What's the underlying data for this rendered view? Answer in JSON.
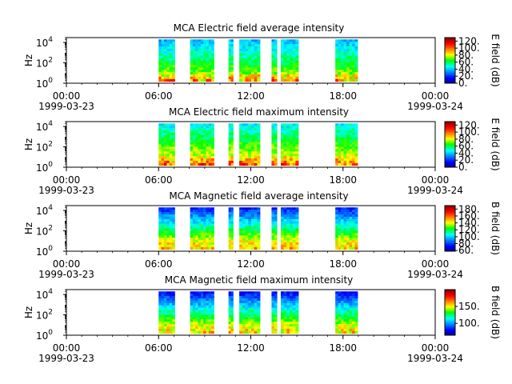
{
  "chart_data": [
    {
      "type": "heatmap",
      "title": "MCA  Electric field average intensity",
      "ylabel": "Hz",
      "yscale": "log",
      "ylim": [
        1,
        30000
      ],
      "yticks": [
        {
          "value": 1,
          "base": "10",
          "exp": "0"
        },
        {
          "value": 100,
          "base": "10",
          "exp": "2"
        },
        {
          "value": 10000,
          "base": "10",
          "exp": "4"
        }
      ],
      "xlim_hours": [
        0,
        24
      ],
      "xticks": [
        {
          "hour": 0,
          "time": "00:00",
          "date": "1999-03-23"
        },
        {
          "hour": 6,
          "time": "06:00",
          "date": ""
        },
        {
          "hour": 12,
          "time": "12:00",
          "date": ""
        },
        {
          "hour": 18,
          "time": "18:00",
          "date": ""
        },
        {
          "hour": 24,
          "time": "00:00",
          "date": "1999-03-24"
        }
      ],
      "colorbar": {
        "label": "E field (dB)",
        "range": [
          0,
          130
        ],
        "ticks": [
          "0.",
          "20.",
          "40.",
          "60.",
          "80.",
          "100.",
          "120."
        ],
        "tick_values": [
          0,
          20,
          40,
          60,
          80,
          100,
          120
        ]
      },
      "data_intervals_hours": [
        [
          6.0,
          7.05
        ],
        [
          8.05,
          9.6
        ],
        [
          10.55,
          10.85
        ],
        [
          11.25,
          12.6
        ],
        [
          13.35,
          13.7
        ],
        [
          13.95,
          15.1
        ],
        [
          17.5,
          18.95
        ]
      ],
      "intensity_profile": "high (80-100 dB) at 1-30 Hz, decreasing to 30-50 dB above 1 kHz"
    },
    {
      "type": "heatmap",
      "title": "MCA  Electric field maximum intensity",
      "ylabel": "Hz",
      "yscale": "log",
      "ylim": [
        1,
        30000
      ],
      "yticks": [
        {
          "value": 1,
          "base": "10",
          "exp": "0"
        },
        {
          "value": 100,
          "base": "10",
          "exp": "2"
        },
        {
          "value": 10000,
          "base": "10",
          "exp": "4"
        }
      ],
      "xlim_hours": [
        0,
        24
      ],
      "xticks": [
        {
          "hour": 0,
          "time": "00:00",
          "date": "1999-03-23"
        },
        {
          "hour": 6,
          "time": "06:00",
          "date": ""
        },
        {
          "hour": 12,
          "time": "12:00",
          "date": ""
        },
        {
          "hour": 18,
          "time": "18:00",
          "date": ""
        },
        {
          "hour": 24,
          "time": "00:00",
          "date": "1999-03-24"
        }
      ],
      "colorbar": {
        "label": "E field (dB)",
        "range": [
          0,
          130
        ],
        "ticks": [
          "0.",
          "20.",
          "40.",
          "60.",
          "80.",
          "100.",
          "120."
        ],
        "tick_values": [
          0,
          20,
          40,
          60,
          80,
          100,
          120
        ]
      },
      "data_intervals_hours": [
        [
          6.0,
          7.05
        ],
        [
          8.05,
          9.6
        ],
        [
          10.55,
          10.85
        ],
        [
          11.25,
          12.6
        ],
        [
          13.35,
          13.7
        ],
        [
          13.95,
          15.1
        ],
        [
          17.5,
          18.95
        ]
      ],
      "intensity_profile": "high (85-110 dB) at 1-30 Hz, decreasing to 35-55 dB above 1 kHz"
    },
    {
      "type": "heatmap",
      "title": "MCA  Magnetic field average intensity",
      "ylabel": "Hz",
      "yscale": "log",
      "ylim": [
        1,
        30000
      ],
      "yticks": [
        {
          "value": 1,
          "base": "10",
          "exp": "0"
        },
        {
          "value": 100,
          "base": "10",
          "exp": "2"
        },
        {
          "value": 10000,
          "base": "10",
          "exp": "4"
        }
      ],
      "xlim_hours": [
        0,
        24
      ],
      "xticks": [
        {
          "hour": 0,
          "time": "00:00",
          "date": "1999-03-23"
        },
        {
          "hour": 6,
          "time": "06:00",
          "date": ""
        },
        {
          "hour": 12,
          "time": "12:00",
          "date": ""
        },
        {
          "hour": 18,
          "time": "18:00",
          "date": ""
        },
        {
          "hour": 24,
          "time": "00:00",
          "date": "1999-03-24"
        }
      ],
      "colorbar": {
        "label": "B field (dB)",
        "range": [
          58,
          190
        ],
        "ticks": [
          "60.",
          "80.",
          "100.",
          "120.",
          "140.",
          "160.",
          "180."
        ],
        "tick_values": [
          60,
          80,
          100,
          120,
          140,
          160,
          180
        ]
      },
      "data_intervals_hours": [
        [
          6.0,
          7.05
        ],
        [
          8.05,
          9.6
        ],
        [
          10.55,
          10.85
        ],
        [
          11.25,
          12.6
        ],
        [
          13.35,
          13.7
        ],
        [
          13.95,
          15.1
        ],
        [
          17.5,
          18.95
        ]
      ],
      "intensity_profile": "low (60-80 dB) above 3 kHz, 100-130 dB mid band, peaks near 150-170 dB at 3-10 Hz"
    },
    {
      "type": "heatmap",
      "title": "MCA  Magnetic field maximum intensity",
      "ylabel": "Hz",
      "yscale": "log",
      "ylim": [
        1,
        30000
      ],
      "yticks": [
        {
          "value": 1,
          "base": "10",
          "exp": "0"
        },
        {
          "value": 100,
          "base": "10",
          "exp": "2"
        },
        {
          "value": 10000,
          "base": "10",
          "exp": "4"
        }
      ],
      "xlim_hours": [
        0,
        24
      ],
      "xticks": [
        {
          "hour": 0,
          "time": "00:00",
          "date": "1999-03-23"
        },
        {
          "hour": 6,
          "time": "06:00",
          "date": ""
        },
        {
          "hour": 12,
          "time": "12:00",
          "date": ""
        },
        {
          "hour": 18,
          "time": "18:00",
          "date": ""
        },
        {
          "hour": 24,
          "time": "00:00",
          "date": "1999-03-24"
        }
      ],
      "colorbar": {
        "label": "B field (dB)",
        "range": [
          65,
          200
        ],
        "ticks": [
          "100.",
          "150."
        ],
        "tick_values": [
          100,
          150
        ]
      },
      "data_intervals_hours": [
        [
          6.0,
          7.05
        ],
        [
          8.05,
          9.6
        ],
        [
          10.55,
          10.85
        ],
        [
          11.25,
          12.6
        ],
        [
          13.35,
          13.7
        ],
        [
          13.95,
          15.1
        ],
        [
          17.5,
          18.95
        ]
      ],
      "intensity_profile": "low (70-90 dB) above 3 kHz, 110-130 dB mid band, peaks near 160-180 dB at 3-10 Hz"
    }
  ]
}
